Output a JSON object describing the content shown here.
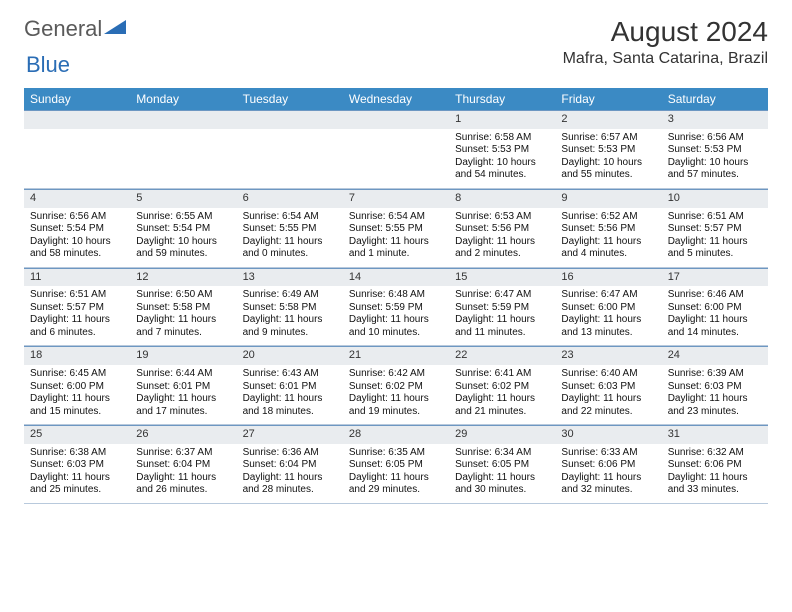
{
  "logo": {
    "text1": "General",
    "text2": "Blue"
  },
  "title": "August 2024",
  "location": "Mafra, Santa Catarina, Brazil",
  "styling": {
    "header_bg": "#3b8ac4",
    "header_text": "#ffffff",
    "daynum_bg": "#e9ecef",
    "cell_border": "#b8c9dc",
    "daynum_border_top": "#6d97c2",
    "page_bg": "#ffffff",
    "body_font_size": 10,
    "title_font_size": 28,
    "location_font_size": 16,
    "header_font_size": 12
  },
  "columns": [
    "Sunday",
    "Monday",
    "Tuesday",
    "Wednesday",
    "Thursday",
    "Friday",
    "Saturday"
  ],
  "weeks": [
    [
      null,
      null,
      null,
      null,
      {
        "d": "1",
        "sr": "6:58 AM",
        "ss": "5:53 PM",
        "dl": "10 hours and 54 minutes."
      },
      {
        "d": "2",
        "sr": "6:57 AM",
        "ss": "5:53 PM",
        "dl": "10 hours and 55 minutes."
      },
      {
        "d": "3",
        "sr": "6:56 AM",
        "ss": "5:53 PM",
        "dl": "10 hours and 57 minutes."
      }
    ],
    [
      {
        "d": "4",
        "sr": "6:56 AM",
        "ss": "5:54 PM",
        "dl": "10 hours and 58 minutes."
      },
      {
        "d": "5",
        "sr": "6:55 AM",
        "ss": "5:54 PM",
        "dl": "10 hours and 59 minutes."
      },
      {
        "d": "6",
        "sr": "6:54 AM",
        "ss": "5:55 PM",
        "dl": "11 hours and 0 minutes."
      },
      {
        "d": "7",
        "sr": "6:54 AM",
        "ss": "5:55 PM",
        "dl": "11 hours and 1 minute."
      },
      {
        "d": "8",
        "sr": "6:53 AM",
        "ss": "5:56 PM",
        "dl": "11 hours and 2 minutes."
      },
      {
        "d": "9",
        "sr": "6:52 AM",
        "ss": "5:56 PM",
        "dl": "11 hours and 4 minutes."
      },
      {
        "d": "10",
        "sr": "6:51 AM",
        "ss": "5:57 PM",
        "dl": "11 hours and 5 minutes."
      }
    ],
    [
      {
        "d": "11",
        "sr": "6:51 AM",
        "ss": "5:57 PM",
        "dl": "11 hours and 6 minutes."
      },
      {
        "d": "12",
        "sr": "6:50 AM",
        "ss": "5:58 PM",
        "dl": "11 hours and 7 minutes."
      },
      {
        "d": "13",
        "sr": "6:49 AM",
        "ss": "5:58 PM",
        "dl": "11 hours and 9 minutes."
      },
      {
        "d": "14",
        "sr": "6:48 AM",
        "ss": "5:59 PM",
        "dl": "11 hours and 10 minutes."
      },
      {
        "d": "15",
        "sr": "6:47 AM",
        "ss": "5:59 PM",
        "dl": "11 hours and 11 minutes."
      },
      {
        "d": "16",
        "sr": "6:47 AM",
        "ss": "6:00 PM",
        "dl": "11 hours and 13 minutes."
      },
      {
        "d": "17",
        "sr": "6:46 AM",
        "ss": "6:00 PM",
        "dl": "11 hours and 14 minutes."
      }
    ],
    [
      {
        "d": "18",
        "sr": "6:45 AM",
        "ss": "6:00 PM",
        "dl": "11 hours and 15 minutes."
      },
      {
        "d": "19",
        "sr": "6:44 AM",
        "ss": "6:01 PM",
        "dl": "11 hours and 17 minutes."
      },
      {
        "d": "20",
        "sr": "6:43 AM",
        "ss": "6:01 PM",
        "dl": "11 hours and 18 minutes."
      },
      {
        "d": "21",
        "sr": "6:42 AM",
        "ss": "6:02 PM",
        "dl": "11 hours and 19 minutes."
      },
      {
        "d": "22",
        "sr": "6:41 AM",
        "ss": "6:02 PM",
        "dl": "11 hours and 21 minutes."
      },
      {
        "d": "23",
        "sr": "6:40 AM",
        "ss": "6:03 PM",
        "dl": "11 hours and 22 minutes."
      },
      {
        "d": "24",
        "sr": "6:39 AM",
        "ss": "6:03 PM",
        "dl": "11 hours and 23 minutes."
      }
    ],
    [
      {
        "d": "25",
        "sr": "6:38 AM",
        "ss": "6:03 PM",
        "dl": "11 hours and 25 minutes."
      },
      {
        "d": "26",
        "sr": "6:37 AM",
        "ss": "6:04 PM",
        "dl": "11 hours and 26 minutes."
      },
      {
        "d": "27",
        "sr": "6:36 AM",
        "ss": "6:04 PM",
        "dl": "11 hours and 28 minutes."
      },
      {
        "d": "28",
        "sr": "6:35 AM",
        "ss": "6:05 PM",
        "dl": "11 hours and 29 minutes."
      },
      {
        "d": "29",
        "sr": "6:34 AM",
        "ss": "6:05 PM",
        "dl": "11 hours and 30 minutes."
      },
      {
        "d": "30",
        "sr": "6:33 AM",
        "ss": "6:06 PM",
        "dl": "11 hours and 32 minutes."
      },
      {
        "d": "31",
        "sr": "6:32 AM",
        "ss": "6:06 PM",
        "dl": "11 hours and 33 minutes."
      }
    ]
  ],
  "labels": {
    "sunrise": "Sunrise:",
    "sunset": "Sunset:",
    "daylight": "Daylight:"
  }
}
